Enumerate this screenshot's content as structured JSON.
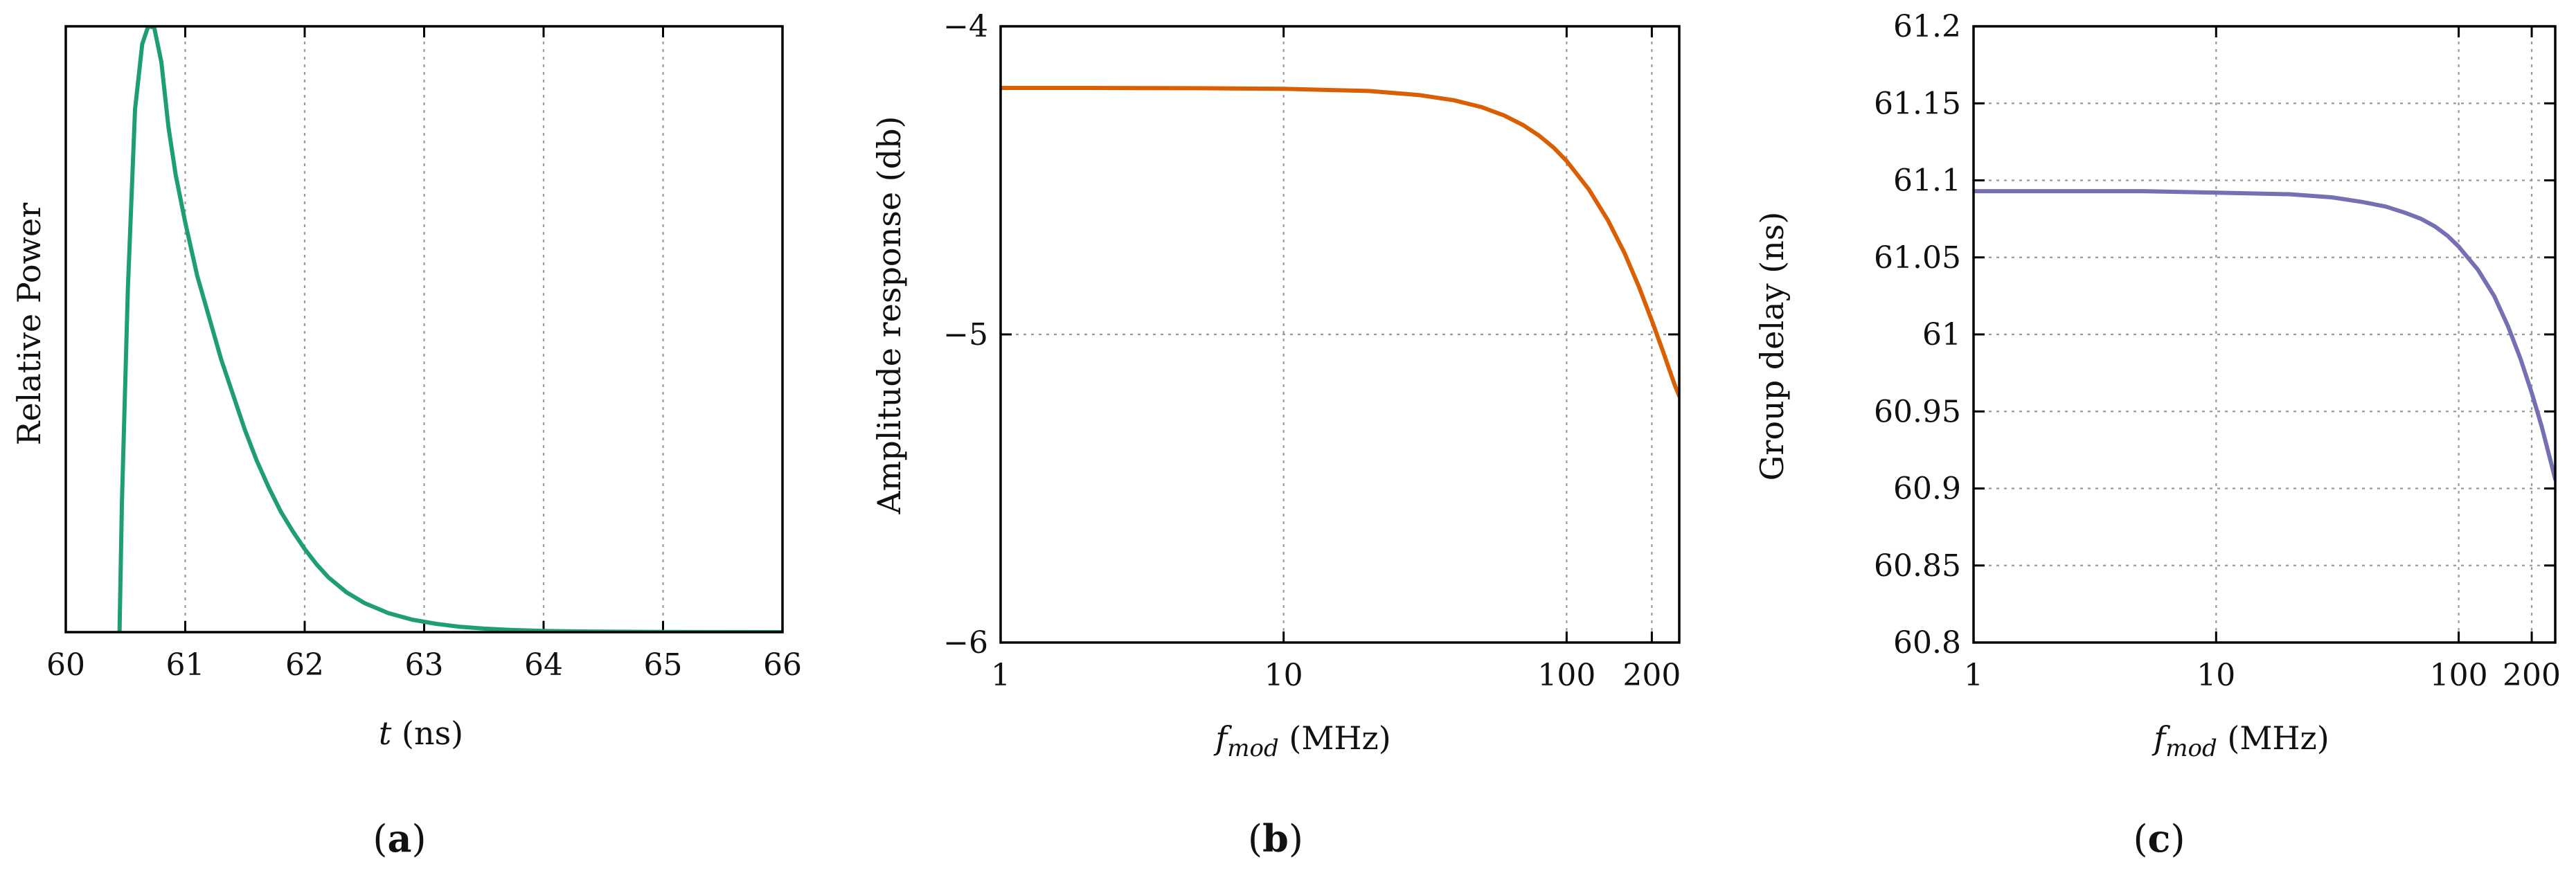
{
  "chart_data": [
    {
      "panel_label": "a",
      "type": "line",
      "title": "",
      "xlabel": {
        "italic": "t",
        "rest": " (ns)"
      },
      "ylabel": "Relative Power",
      "xlim": [
        60,
        66
      ],
      "ylim": [
        0,
        1.02
      ],
      "xticks": [
        "60",
        "61",
        "62",
        "63",
        "64",
        "65",
        "66"
      ],
      "yticks": [],
      "grid": "vertical dotted",
      "series": [
        {
          "name": "pulse",
          "color": "#1f9e76",
          "x": [
            60.45,
            60.47,
            60.52,
            60.58,
            60.64,
            60.69,
            60.74,
            60.8,
            60.86,
            60.92,
            61.0,
            61.1,
            61.2,
            61.3,
            61.4,
            61.5,
            61.6,
            61.7,
            61.8,
            61.9,
            62.0,
            62.1,
            62.2,
            62.35,
            62.5,
            62.7,
            62.9,
            63.1,
            63.3,
            63.5,
            63.7,
            64.0,
            64.3,
            64.6,
            65.0,
            65.5,
            66.0
          ],
          "y": [
            0.0,
            0.22,
            0.58,
            0.88,
            0.99,
            1.02,
            1.018,
            0.96,
            0.85,
            0.77,
            0.69,
            0.6,
            0.53,
            0.46,
            0.4,
            0.34,
            0.288,
            0.243,
            0.203,
            0.17,
            0.14,
            0.114,
            0.092,
            0.067,
            0.049,
            0.032,
            0.021,
            0.014,
            0.009,
            0.006,
            0.004,
            0.002,
            0.0012,
            0.0007,
            0.0003,
            0.0001,
            0.0
          ]
        }
      ]
    },
    {
      "panel_label": "b",
      "type": "line",
      "title": "",
      "xlabel": {
        "italic": "f",
        "sub": "mod",
        "rest": " (MHz)"
      },
      "ylabel": "Amplitude response (db)",
      "xscale": "log",
      "xlim": [
        1,
        250
      ],
      "ylim": [
        -6,
        -4
      ],
      "xticks": [
        1,
        10,
        100,
        200
      ],
      "xtick_labels": [
        "1",
        "10",
        "100",
        "200"
      ],
      "yticks": [
        -6,
        -5,
        -4
      ],
      "ytick_labels": [
        "−6",
        "−5",
        "−4"
      ],
      "grid": "dotted",
      "series": [
        {
          "name": "amplitude",
          "color": "#d95f02",
          "x": [
            1,
            2,
            5,
            10,
            20,
            30,
            40,
            50,
            60,
            70,
            80,
            90,
            100,
            120,
            140,
            160,
            180,
            200,
            220,
            240,
            250
          ],
          "y": [
            -4.2,
            -4.2,
            -4.201,
            -4.203,
            -4.21,
            -4.223,
            -4.24,
            -4.262,
            -4.289,
            -4.32,
            -4.355,
            -4.394,
            -4.437,
            -4.53,
            -4.63,
            -4.735,
            -4.845,
            -4.955,
            -5.06,
            -5.16,
            -5.2
          ]
        }
      ]
    },
    {
      "panel_label": "c",
      "type": "line",
      "title": "",
      "xlabel": {
        "italic": "f",
        "sub": "mod",
        "rest": " (MHz)"
      },
      "ylabel": "Group delay (ns)",
      "xscale": "log",
      "xlim": [
        1,
        250
      ],
      "ylim": [
        60.8,
        61.2
      ],
      "xticks": [
        1,
        10,
        100,
        200
      ],
      "xtick_labels": [
        "1",
        "10",
        "100",
        "200"
      ],
      "yticks": [
        60.8,
        60.85,
        60.9,
        60.95,
        61,
        61.05,
        61.1,
        61.15,
        61.2
      ],
      "ytick_labels": [
        "60.8",
        "60.85",
        "60.9",
        "60.95",
        "61",
        "61.05",
        "61.1",
        "61.15",
        "61.2"
      ],
      "grid": "dotted",
      "series": [
        {
          "name": "group delay",
          "color": "#7570b3",
          "x": [
            1,
            2,
            5,
            10,
            20,
            30,
            40,
            50,
            60,
            70,
            80,
            90,
            100,
            120,
            140,
            160,
            180,
            200,
            220,
            240,
            250
          ],
          "y": [
            61.093,
            61.093,
            61.093,
            61.092,
            61.091,
            61.089,
            61.086,
            61.083,
            61.079,
            61.075,
            61.07,
            61.064,
            61.057,
            61.042,
            61.025,
            61.005,
            60.984,
            60.962,
            60.94,
            60.917,
            60.906
          ]
        }
      ]
    }
  ]
}
